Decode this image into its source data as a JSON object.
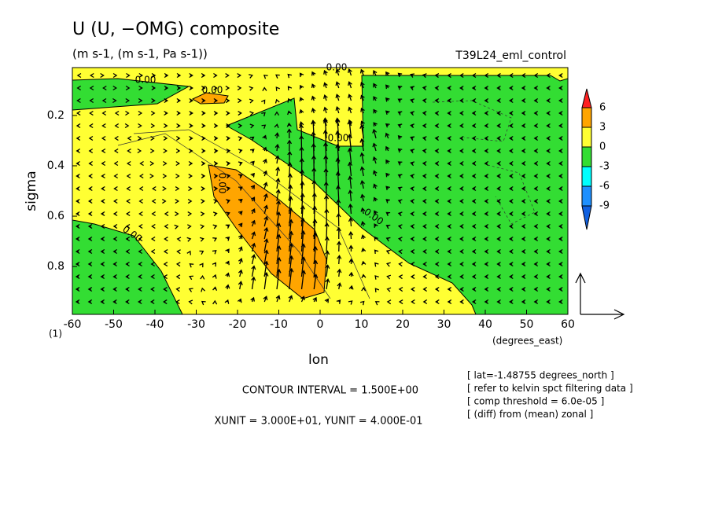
{
  "chart_data": {
    "type": "contour",
    "title": "U (U, −OMG) composite",
    "subtitle": "(m s-1, (m s-1, Pa s-1))",
    "experiment": "T39L24_eml_control",
    "x_label": "lon",
    "x_units": "(degrees_east)",
    "y_label": "sigma",
    "corner_label": "(1)",
    "xlim": [
      -60,
      60
    ],
    "xticks": [
      -60,
      -50,
      -40,
      -30,
      -20,
      -10,
      0,
      10,
      20,
      30,
      40,
      50,
      60
    ],
    "ylim": [
      0.99,
      0.01
    ],
    "yticks": [
      0.2,
      0.4,
      0.6,
      0.8
    ],
    "levels": [
      6,
      3,
      0,
      -3,
      -6,
      -9
    ],
    "level_colors": [
      "#ff2020",
      "#ffa500",
      "#ffff33",
      "#33dd33",
      "#00ffff",
      "#1e90ff",
      "#1060e0"
    ],
    "contour_labels": [
      "0.00",
      "0.00",
      "0.00",
      "0.00",
      "0.00",
      "0.00",
      "0.00"
    ],
    "contour_interval": "CONTOUR INTERVAL = 1.500E+00",
    "units_note": "XUNIT = 3.000E+01, YUNIT = 4.000E-01",
    "info": [
      "[ lat=-1.48755 degrees_north ]",
      "[ refer to kelvin spct filtering data ]",
      "[ comp threshold = 6.0e-05 ]",
      "[ (diff) from (mean) zonal ]"
    ]
  }
}
